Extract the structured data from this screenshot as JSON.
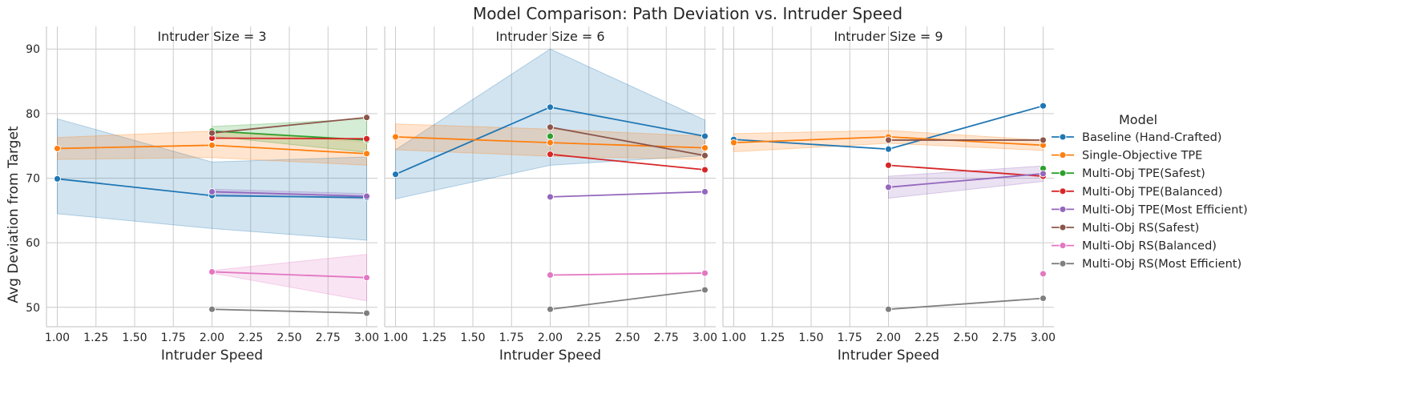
{
  "chart_data": {
    "type": "line",
    "title": "Model Comparison: Path Deviation vs. Intruder Speed",
    "xlabel": "Intruder Speed",
    "ylabel": "Avg Deviation from Target",
    "xlim": [
      0.93,
      3.07
    ],
    "ylim": [
      47,
      93.5
    ],
    "xticks": [
      "1.00",
      "1.25",
      "1.50",
      "1.75",
      "2.00",
      "2.25",
      "2.50",
      "2.75",
      "3.00"
    ],
    "yticks": [
      "50",
      "60",
      "70",
      "80",
      "90"
    ],
    "grid": true,
    "legend": {
      "title": "Model",
      "placement": "right",
      "entries": [
        {
          "name": "Baseline (Hand-Crafted)",
          "color": "#1f77b4"
        },
        {
          "name": "Single-Objective TPE",
          "color": "#ff7f0e"
        },
        {
          "name": "Multi-Obj TPE(Safest)",
          "color": "#2ca02c"
        },
        {
          "name": "Multi-Obj TPE(Balanced)",
          "color": "#d62728"
        },
        {
          "name": "Multi-Obj TPE(Most Efficient)",
          "color": "#9467bd"
        },
        {
          "name": "Multi-Obj RS(Safest)",
          "color": "#8c564b"
        },
        {
          "name": "Multi-Obj RS(Balanced)",
          "color": "#e377c2"
        },
        {
          "name": "Multi-Obj RS(Most Efficient)",
          "color": "#7f7f7f"
        }
      ]
    },
    "panels": [
      {
        "title": "Intruder Size = 3",
        "series": [
          {
            "name": "Baseline (Hand-Crafted)",
            "x": [
              1,
              2,
              3
            ],
            "y": [
              69.9,
              67.3,
              67.0
            ],
            "ci_low": [
              64.5,
              62.2,
              60.4
            ],
            "ci_high": [
              79.2,
              72.5,
              73.3
            ]
          },
          {
            "name": "Single-Objective TPE",
            "x": [
              1,
              2,
              3
            ],
            "y": [
              74.6,
              75.1,
              73.8
            ],
            "ci_low": [
              72.9,
              73.2,
              72.0
            ],
            "ci_high": [
              76.3,
              77.3,
              75.6
            ]
          },
          {
            "name": "Multi-Obj TPE(Safest)",
            "x": [
              2,
              3
            ],
            "y": [
              77.3,
              75.9
            ],
            "ci_low": [
              76.5,
              74.0
            ],
            "ci_high": [
              78.0,
              79.2
            ]
          },
          {
            "name": "Multi-Obj TPE(Balanced)",
            "x": [
              2,
              3
            ],
            "y": [
              76.2,
              76.1
            ]
          },
          {
            "name": "Multi-Obj TPE(Most Efficient)",
            "x": [
              2,
              3
            ],
            "y": [
              67.9,
              67.2
            ],
            "ci_low": [
              67.5,
              66.8
            ],
            "ci_high": [
              68.3,
              67.6
            ]
          },
          {
            "name": "Multi-Obj RS(Safest)",
            "x": [
              2,
              3
            ],
            "y": [
              77.0,
              79.4
            ]
          },
          {
            "name": "Multi-Obj RS(Balanced)",
            "x": [
              2,
              3
            ],
            "y": [
              55.5,
              54.6
            ],
            "ci_low": [
              55.3,
              51.0
            ],
            "ci_high": [
              55.7,
              58.2
            ]
          },
          {
            "name": "Multi-Obj RS(Most Efficient)",
            "x": [
              2,
              3
            ],
            "y": [
              49.7,
              49.1
            ]
          }
        ]
      },
      {
        "title": "Intruder Size = 6",
        "series": [
          {
            "name": "Baseline (Hand-Crafted)",
            "x": [
              1,
              2,
              3
            ],
            "y": [
              70.6,
              81.0,
              76.5
            ],
            "ci_low": [
              66.8,
              72.0,
              73.5
            ],
            "ci_high": [
              74.4,
              90.0,
              79.0
            ]
          },
          {
            "name": "Single-Objective TPE",
            "x": [
              1,
              2,
              3
            ],
            "y": [
              76.4,
              75.5,
              74.7
            ],
            "ci_low": [
              74.4,
              73.4,
              72.9
            ],
            "ci_high": [
              78.4,
              77.6,
              76.5
            ]
          },
          {
            "name": "Multi-Obj TPE(Safest)",
            "x": [
              2
            ],
            "y": [
              76.5
            ]
          },
          {
            "name": "Multi-Obj TPE(Balanced)",
            "x": [
              2,
              3
            ],
            "y": [
              73.7,
              71.3
            ]
          },
          {
            "name": "Multi-Obj TPE(Most Efficient)",
            "x": [
              2,
              3
            ],
            "y": [
              67.1,
              67.9
            ]
          },
          {
            "name": "Multi-Obj RS(Safest)",
            "x": [
              2,
              3
            ],
            "y": [
              77.9,
              73.5
            ]
          },
          {
            "name": "Multi-Obj RS(Balanced)",
            "x": [
              2,
              3
            ],
            "y": [
              55.0,
              55.3
            ]
          },
          {
            "name": "Multi-Obj RS(Most Efficient)",
            "x": [
              2,
              3
            ],
            "y": [
              49.7,
              52.7
            ]
          }
        ]
      },
      {
        "title": "Intruder Size = 9",
        "series": [
          {
            "name": "Baseline (Hand-Crafted)",
            "x": [
              1,
              2,
              3
            ],
            "y": [
              76.0,
              74.5,
              81.2
            ]
          },
          {
            "name": "Single-Objective TPE",
            "x": [
              1,
              2,
              3
            ],
            "y": [
              75.5,
              76.4,
              75.1
            ],
            "ci_low": [
              74.1,
              75.4,
              74.3
            ],
            "ci_high": [
              76.9,
              77.4,
              75.9
            ]
          },
          {
            "name": "Multi-Obj TPE(Safest)",
            "x": [
              3
            ],
            "y": [
              71.5
            ]
          },
          {
            "name": "Multi-Obj TPE(Balanced)",
            "x": [
              2,
              3
            ],
            "y": [
              72.0,
              70.3
            ]
          },
          {
            "name": "Multi-Obj TPE(Most Efficient)",
            "x": [
              2,
              3
            ],
            "y": [
              68.6,
              70.7
            ],
            "ci_low": [
              66.9,
              69.5
            ],
            "ci_high": [
              70.3,
              71.9
            ]
          },
          {
            "name": "Multi-Obj RS(Safest)",
            "x": [
              2,
              3
            ],
            "y": [
              75.9,
              75.9
            ]
          },
          {
            "name": "Multi-Obj RS(Balanced)",
            "x": [
              3
            ],
            "y": [
              55.2
            ]
          },
          {
            "name": "Multi-Obj RS(Most Efficient)",
            "x": [
              2,
              3
            ],
            "y": [
              49.7,
              51.4
            ]
          }
        ]
      }
    ]
  }
}
